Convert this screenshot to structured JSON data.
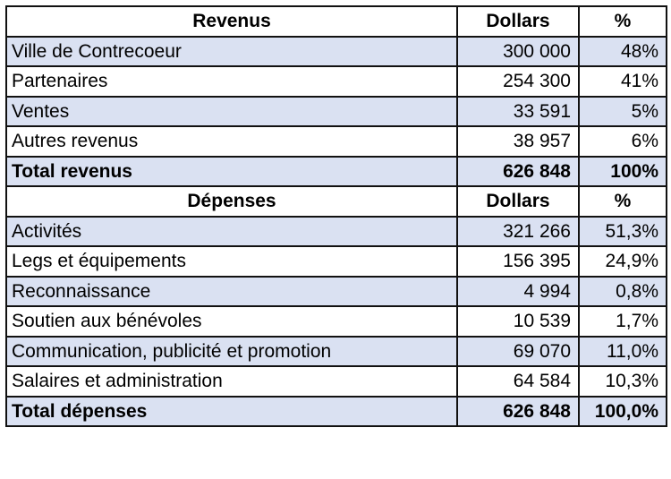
{
  "revenus": {
    "header": {
      "label": "Revenus",
      "dollars": "Dollars",
      "pct": "%"
    },
    "rows": [
      {
        "label": "Ville de Contrecoeur",
        "dollars": "300 000",
        "pct": "48%"
      },
      {
        "label": "Partenaires",
        "dollars": "254 300",
        "pct": "41%"
      },
      {
        "label": "Ventes",
        "dollars": "33 591",
        "pct": "5%"
      },
      {
        "label": "Autres revenus",
        "dollars": "38 957",
        "pct": "6%"
      }
    ],
    "total": {
      "label": "Total revenus",
      "dollars": "626 848",
      "pct": "100%"
    }
  },
  "depenses": {
    "header": {
      "label": "Dépenses",
      "dollars": "Dollars",
      "pct": "%"
    },
    "rows": [
      {
        "label": "Activités",
        "dollars": "321 266",
        "pct": "51,3%"
      },
      {
        "label": "Legs et équipements",
        "dollars": "156 395",
        "pct": "24,9%"
      },
      {
        "label": "Reconnaissance",
        "dollars": "4 994",
        "pct": "0,8%"
      },
      {
        "label": "Soutien aux bénévoles",
        "dollars": "10 539",
        "pct": "1,7%"
      },
      {
        "label": "Communication, publicité et promotion",
        "dollars": "69 070",
        "pct": "11,0%"
      },
      {
        "label": "Salaires et administration",
        "dollars": "64 584",
        "pct": "10,3%"
      }
    ],
    "total": {
      "label": "Total dépenses",
      "dollars": "626 848",
      "pct": "100,0%"
    }
  },
  "colors": {
    "row_shade": "#dae1f2",
    "row_plain": "#ffffff",
    "border": "#111111"
  }
}
